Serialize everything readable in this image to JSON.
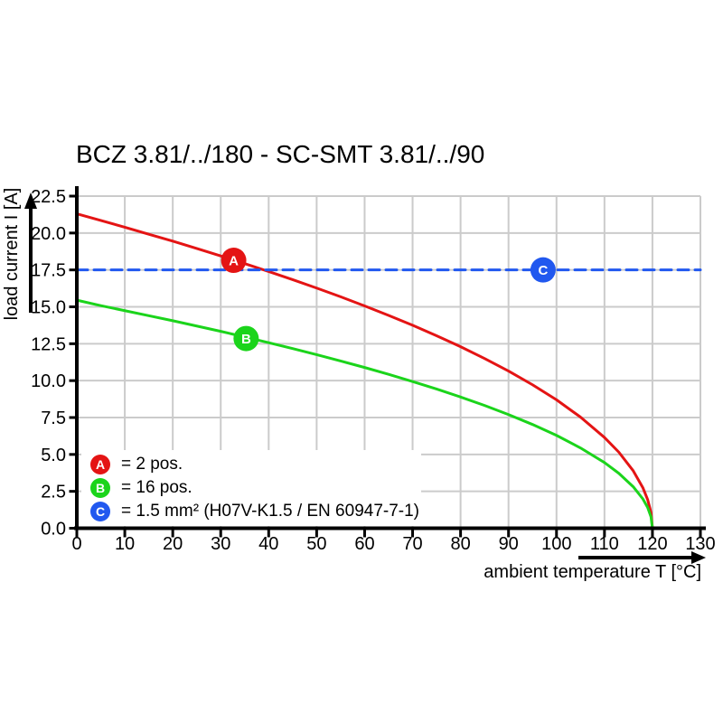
{
  "title": "BCZ 3.81/../180 - SC-SMT 3.81/../90",
  "colors": {
    "red": "#e41414",
    "green": "#1bd41b",
    "blue": "#2158ef",
    "grid": "#cbcbcb",
    "axis": "#000000",
    "background": "#ffffff"
  },
  "chart_data": {
    "type": "line",
    "title": "BCZ 3.81/../180 - SC-SMT 3.81/../90",
    "xlabel": "ambient temperature T [°C]",
    "ylabel": "load current I [A]",
    "xlim": [
      0,
      130
    ],
    "ylim": [
      0,
      22.5
    ],
    "grid": true,
    "legend_position": "lower-left",
    "x_ticks": [
      0,
      10,
      20,
      30,
      40,
      50,
      60,
      70,
      80,
      90,
      100,
      110,
      120,
      130
    ],
    "y_ticks": [
      0,
      2.5,
      5,
      7.5,
      10,
      12.5,
      15,
      17.5,
      20,
      22.5
    ],
    "y_tick_labels": [
      "0.0",
      "2.5",
      "5.0",
      "7.5",
      "10.0",
      "12.5",
      "15.0",
      "17.5",
      "20.0",
      "22.5"
    ],
    "series": [
      {
        "name": "A",
        "label": "2 pos.",
        "color": "#e41414",
        "style": "solid",
        "points": [
          [
            0,
            21.3
          ],
          [
            5,
            20.85
          ],
          [
            10,
            20.39
          ],
          [
            15,
            19.92
          ],
          [
            20,
            19.45
          ],
          [
            25,
            18.95
          ],
          [
            30,
            18.45
          ],
          [
            35,
            17.93
          ],
          [
            40,
            17.39
          ],
          [
            45,
            16.84
          ],
          [
            50,
            16.27
          ],
          [
            55,
            15.68
          ],
          [
            60,
            15.06
          ],
          [
            65,
            14.42
          ],
          [
            70,
            13.75
          ],
          [
            75,
            13.04
          ],
          [
            80,
            12.3
          ],
          [
            85,
            11.5
          ],
          [
            90,
            10.65
          ],
          [
            95,
            9.72
          ],
          [
            100,
            8.7
          ],
          [
            105,
            7.53
          ],
          [
            110,
            6.15
          ],
          [
            113,
            5.15
          ],
          [
            116,
            3.89
          ],
          [
            118,
            2.75
          ],
          [
            119,
            1.94
          ],
          [
            119.7,
            1.07
          ],
          [
            120,
            0
          ]
        ]
      },
      {
        "name": "B",
        "label": "16 pos.",
        "color": "#1bd41b",
        "style": "solid",
        "points": [
          [
            0,
            15.45
          ],
          [
            5,
            15.08
          ],
          [
            10,
            14.74
          ],
          [
            15,
            14.4
          ],
          [
            20,
            14.06
          ],
          [
            25,
            13.7
          ],
          [
            30,
            13.34
          ],
          [
            35,
            12.96
          ],
          [
            40,
            12.57
          ],
          [
            45,
            12.17
          ],
          [
            50,
            11.76
          ],
          [
            55,
            11.33
          ],
          [
            60,
            10.89
          ],
          [
            65,
            10.43
          ],
          [
            70,
            9.94
          ],
          [
            75,
            9.43
          ],
          [
            80,
            8.89
          ],
          [
            85,
            8.32
          ],
          [
            90,
            7.7
          ],
          [
            95,
            7.03
          ],
          [
            100,
            6.29
          ],
          [
            105,
            5.44
          ],
          [
            110,
            4.45
          ],
          [
            113,
            3.72
          ],
          [
            116,
            2.81
          ],
          [
            118,
            1.99
          ],
          [
            119,
            1.41
          ],
          [
            119.7,
            0.77
          ],
          [
            120,
            0
          ]
        ]
      },
      {
        "name": "C",
        "label": "1.5 mm² (H07V-K1.5 / EN 60947-7-1)",
        "color": "#2158ef",
        "style": "dashed",
        "points": [
          [
            0,
            17.5
          ],
          [
            130,
            17.5
          ]
        ]
      }
    ],
    "markers": [
      {
        "label": "A",
        "x": 32.7,
        "y": 18.15,
        "color": "#e41414"
      },
      {
        "label": "B",
        "x": 35.3,
        "y": 12.85,
        "color": "#1bd41b"
      },
      {
        "label": "C",
        "x": 97.2,
        "y": 17.5,
        "color": "#2158ef"
      }
    ],
    "legend": [
      {
        "label": "A",
        "color": "#e41414",
        "text": "= 2 pos."
      },
      {
        "label": "B",
        "color": "#1bd41b",
        "text": "= 16 pos."
      },
      {
        "label": "C",
        "color": "#2158ef",
        "text": "= 1.5 mm² (H07V-K1.5 / EN 60947-7-1)"
      }
    ]
  }
}
